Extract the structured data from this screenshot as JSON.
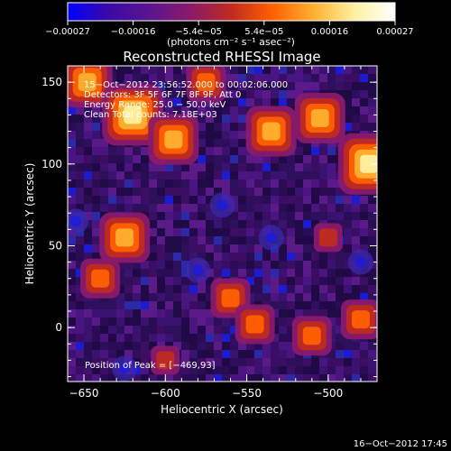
{
  "chart_data": {
    "type": "heatmap",
    "title": "Reconstructed RHESSI Image",
    "xlabel": "Heliocentric X (arcsec)",
    "ylabel": "Heliocentric Y (arcsec)",
    "xlim": [
      -660,
      -470
    ],
    "ylim": [
      -33,
      160
    ],
    "x_ticks": [
      {
        "value": -650,
        "label": "−650"
      },
      {
        "value": -600,
        "label": "−600"
      },
      {
        "value": -550,
        "label": "−550"
      },
      {
        "value": -500,
        "label": "−500"
      }
    ],
    "y_ticks": [
      {
        "value": 0,
        "label": "0"
      },
      {
        "value": 50,
        "label": "50"
      },
      {
        "value": 100,
        "label": "100"
      },
      {
        "value": 150,
        "label": "150"
      }
    ],
    "colorbar": {
      "min": -0.00027,
      "max": 0.00027,
      "tick_labels": [
        "−0.00027",
        "−0.00016",
        "−5.4e−05",
        "5.4e−05",
        "0.00016",
        "0.00027"
      ],
      "units": "(photons cm⁻² s⁻¹ asec⁻²)",
      "colors": [
        "#0000ff",
        "#3a0aa6",
        "#5a1590",
        "#8a1a6a",
        "#c02a20",
        "#ff6000",
        "#ffb030",
        "#fff0a0",
        "#ffffff"
      ]
    },
    "annotations": [
      "15−Oct−2012 23:56:52.000 to 00:02:06.000",
      "Detectors: 3F 5F 6F 7F 8F 9F, Att 0",
      "Energy Range: 25.0 − 50.0 keV",
      "Clean    Total counts: 7.18E+03"
    ],
    "peak_label": "Position of Peak = [−469,93]",
    "peak": {
      "x": -469,
      "y": 93
    },
    "bright_sources": [
      {
        "x": -648,
        "y": 150,
        "strength": 0.85
      },
      {
        "x": -620,
        "y": 130,
        "strength": 0.95
      },
      {
        "x": -595,
        "y": 115,
        "strength": 0.8
      },
      {
        "x": -575,
        "y": 150,
        "strength": 0.6
      },
      {
        "x": -535,
        "y": 120,
        "strength": 0.8
      },
      {
        "x": -505,
        "y": 128,
        "strength": 0.85
      },
      {
        "x": -475,
        "y": 100,
        "strength": 1.0
      },
      {
        "x": -625,
        "y": 55,
        "strength": 0.75
      },
      {
        "x": -640,
        "y": 30,
        "strength": 0.55
      },
      {
        "x": -560,
        "y": 18,
        "strength": 0.6
      },
      {
        "x": -545,
        "y": 2,
        "strength": 0.65
      },
      {
        "x": -510,
        "y": -5,
        "strength": 0.6
      },
      {
        "x": -480,
        "y": 5,
        "strength": 0.55
      },
      {
        "x": -600,
        "y": -20,
        "strength": 0.35
      },
      {
        "x": -500,
        "y": 55,
        "strength": 0.35
      }
    ],
    "dim_sources": [
      {
        "x": -580,
        "y": 35
      },
      {
        "x": -535,
        "y": 55
      },
      {
        "x": -655,
        "y": 65
      },
      {
        "x": -565,
        "y": 75
      },
      {
        "x": -625,
        "y": -25
      },
      {
        "x": -480,
        "y": 40
      }
    ]
  },
  "footer": {
    "timestamp": "16−Oct−2012 17:45"
  }
}
